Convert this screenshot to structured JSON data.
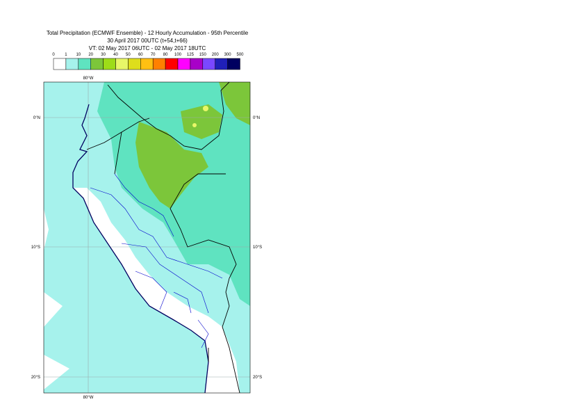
{
  "header": {
    "title": "Total Precipitation (ECMWF Ensemble) - 12 Hourly Accumulation - 95th Percentile",
    "base_time": "30 April 2017 00UTC (t+54,t+66)",
    "valid_time": "VT: 02 May 2017 06UTC - 02 May 2017 18UTC"
  },
  "legend": {
    "labels": [
      0,
      1,
      10,
      20,
      30,
      40,
      50,
      60,
      70,
      80,
      100,
      125,
      150,
      200,
      300,
      500
    ],
    "colors": [
      "#ffffff",
      "#a6f2ec",
      "#5fe3c0",
      "#7cc63a",
      "#9ddc18",
      "#e8f768",
      "#dede1c",
      "#ffc012",
      "#ff8000",
      "#ff0000",
      "#ff00ff",
      "#a800c8",
      "#7a48ff",
      "#2020b8",
      "#000060"
    ]
  },
  "map": {
    "lon_labels": {
      "top": "80°W",
      "bottom": "80°W"
    },
    "lat_labels": {
      "left": [
        "0°N",
        "10°S",
        "20°S"
      ],
      "right": [
        "0°N",
        "10°S",
        "20°S"
      ]
    }
  }
}
